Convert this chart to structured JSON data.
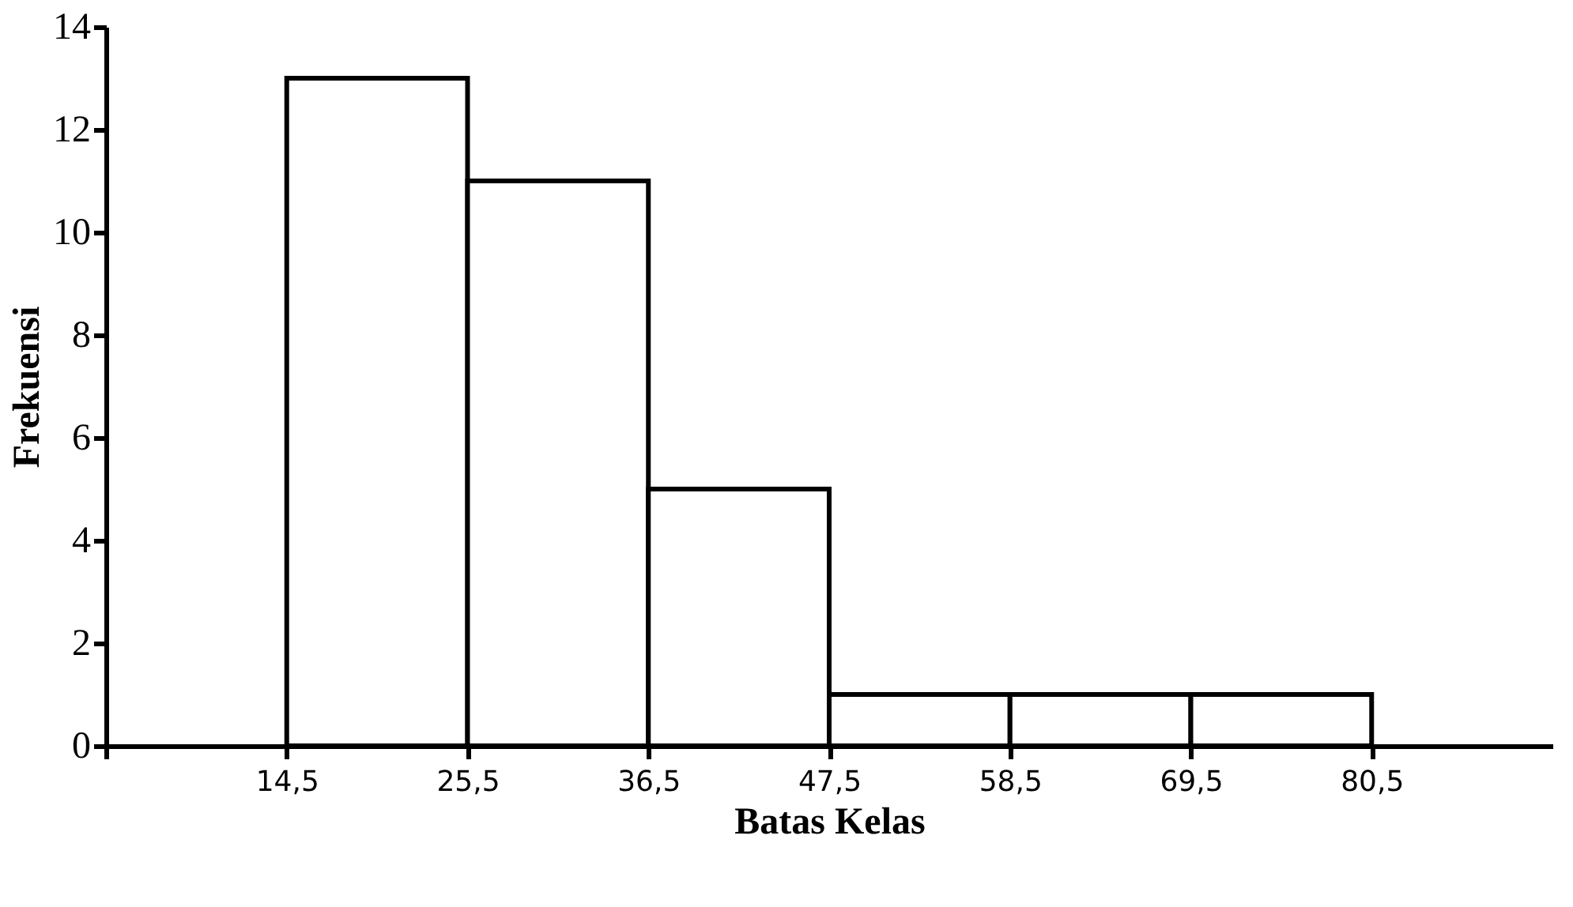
{
  "chart_data": {
    "type": "histogram",
    "xlabel": "Batas Kelas",
    "ylabel": "Frekuensi",
    "bins": [
      14.5,
      25.5,
      36.5,
      47.5,
      58.5,
      69.5,
      80.5
    ],
    "values": [
      13,
      11,
      5,
      1,
      1,
      1
    ],
    "color": "#ffffff",
    "xlim": [
      3.5,
      91.5
    ],
    "xticks": [
      {
        "value": 3.5,
        "label": null
      },
      {
        "value": 14.5,
        "label": "14,5"
      },
      {
        "value": 25.5,
        "label": "25,5"
      },
      {
        "value": 36.5,
        "label": "36,5"
      },
      {
        "value": 47.5,
        "label": "47,5"
      },
      {
        "value": 58.5,
        "label": "58,5"
      },
      {
        "value": 69.5,
        "label": "69,5"
      },
      {
        "value": 80.5,
        "label": "80,5"
      }
    ],
    "ylim": [
      0,
      14
    ],
    "yticks": [
      0,
      2,
      4,
      6,
      8,
      10,
      12,
      14
    ],
    "grid": false
  }
}
